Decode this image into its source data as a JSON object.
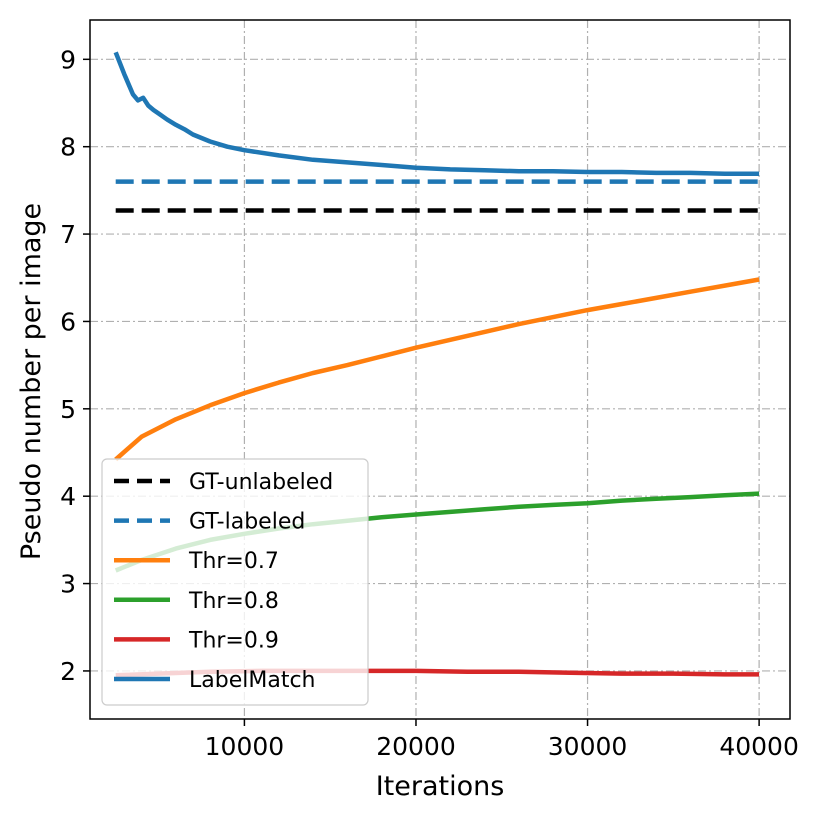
{
  "chart_data": {
    "type": "line",
    "title": "",
    "xlabel": "Iterations",
    "ylabel": "Pseudo number per image",
    "xlim": [
      1000,
      41800
    ],
    "ylim": [
      1.45,
      9.45
    ],
    "xticks": [
      10000,
      20000,
      30000,
      40000
    ],
    "xtick_labels": [
      "10000",
      "20000",
      "30000",
      "40000"
    ],
    "yticks": [
      2,
      3,
      4,
      5,
      6,
      7,
      8,
      9
    ],
    "ytick_labels": [
      "2",
      "3",
      "4",
      "5",
      "6",
      "7",
      "8",
      "9"
    ],
    "grid": true,
    "legend_position": "lower-left",
    "series": [
      {
        "name": "GT-unlabeled",
        "color": "#000000",
        "style": "dashed",
        "x": [
          2500,
          40000
        ],
        "y": [
          7.27,
          7.27
        ]
      },
      {
        "name": "GT-labeled",
        "color": "#1f77b4",
        "style": "dashed",
        "x": [
          2500,
          40000
        ],
        "y": [
          7.6,
          7.6
        ]
      },
      {
        "name": "Thr=0.7",
        "color": "#ff7f0e",
        "style": "solid",
        "x": [
          2500,
          4000,
          6000,
          8000,
          10000,
          12000,
          14000,
          16000,
          18000,
          20000,
          22000,
          24000,
          26000,
          28000,
          30000,
          32000,
          34000,
          36000,
          38000,
          40000
        ],
        "y": [
          4.42,
          4.68,
          4.88,
          5.04,
          5.18,
          5.3,
          5.41,
          5.5,
          5.6,
          5.7,
          5.79,
          5.88,
          5.97,
          6.05,
          6.13,
          6.2,
          6.27,
          6.34,
          6.41,
          6.48
        ]
      },
      {
        "name": "Thr=0.8",
        "color": "#2ca02c",
        "style": "solid",
        "x": [
          2500,
          4000,
          6000,
          8000,
          10000,
          12000,
          14000,
          16000,
          18000,
          20000,
          22000,
          24000,
          26000,
          28000,
          30000,
          32000,
          34000,
          36000,
          38000,
          40000
        ],
        "y": [
          3.15,
          3.27,
          3.4,
          3.5,
          3.57,
          3.63,
          3.68,
          3.72,
          3.76,
          3.79,
          3.82,
          3.85,
          3.88,
          3.9,
          3.92,
          3.95,
          3.97,
          3.99,
          4.01,
          4.03
        ]
      },
      {
        "name": "Thr=0.9",
        "color": "#d62728",
        "style": "solid",
        "x": [
          2500,
          5000,
          8000,
          11000,
          14000,
          17000,
          20000,
          23000,
          26000,
          29000,
          32000,
          35000,
          38000,
          40000
        ],
        "y": [
          1.95,
          1.97,
          1.99,
          2.0,
          2.0,
          2.0,
          2.0,
          1.99,
          1.99,
          1.98,
          1.97,
          1.97,
          1.96,
          1.96
        ]
      },
      {
        "name": "LabelMatch",
        "color": "#1f77b4",
        "style": "solid",
        "x": [
          2500,
          3000,
          3500,
          3800,
          4100,
          4400,
          4700,
          5000,
          5500,
          6000,
          6500,
          7000,
          8000,
          9000,
          10000,
          12000,
          14000,
          16000,
          18000,
          20000,
          22000,
          24000,
          26000,
          28000,
          30000,
          32000,
          34000,
          36000,
          38000,
          40000
        ],
        "y": [
          9.08,
          8.83,
          8.6,
          8.53,
          8.56,
          8.47,
          8.42,
          8.38,
          8.31,
          8.25,
          8.2,
          8.14,
          8.06,
          8.0,
          7.96,
          7.9,
          7.85,
          7.82,
          7.79,
          7.76,
          7.74,
          7.73,
          7.72,
          7.72,
          7.71,
          7.71,
          7.7,
          7.7,
          7.69,
          7.69
        ]
      }
    ]
  }
}
